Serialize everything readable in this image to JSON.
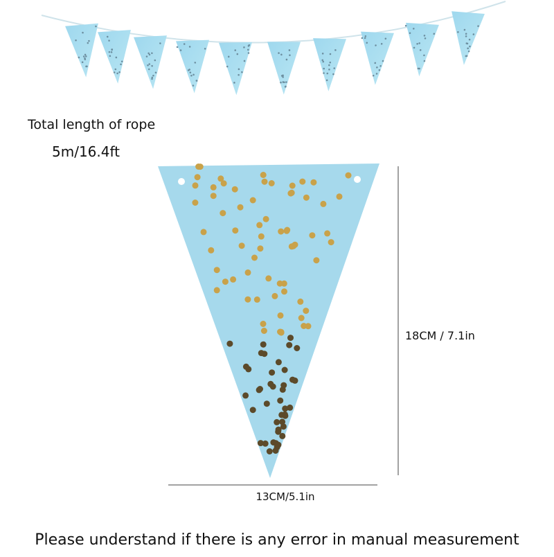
{
  "rope_label": "Total length of rope",
  "rope_length": "5m/16.4ft",
  "height_label": "18CM / 7.1in",
  "width_label": "13CM/5.1in",
  "footer": "Please understand if there is any error in manual measurement"
}
